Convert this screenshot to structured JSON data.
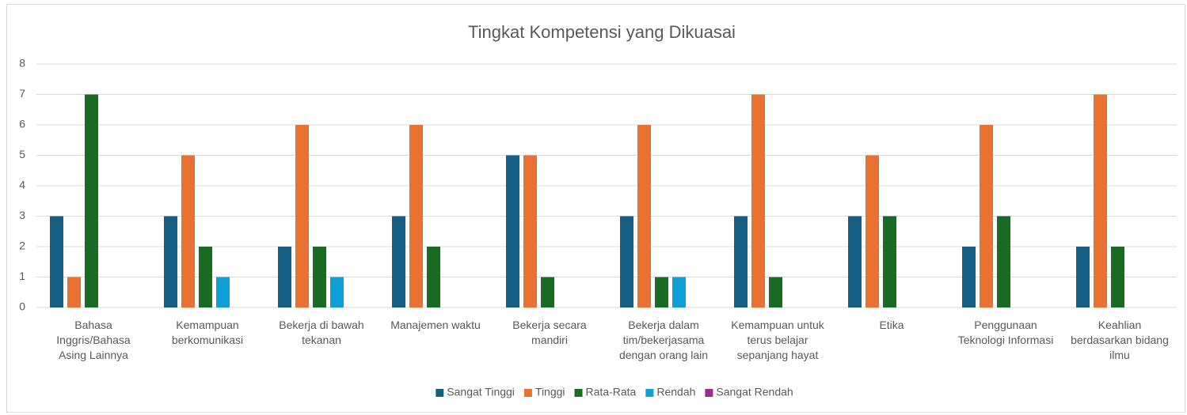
{
  "chart_data": {
    "type": "bar",
    "title": "Tingkat Kompetensi yang Dikuasai",
    "categories": [
      "Bahasa Inggris/Bahasa Asing Lainnya",
      "Kemampuan berkomunikasi",
      "Bekerja di bawah tekanan",
      "Manajemen waktu",
      "Bekerja secara mandiri",
      "Bekerja dalam tim/bekerjasama dengan orang lain",
      "Kemampuan untuk terus belajar sepanjang hayat",
      "Etika",
      "Penggunaan Teknologi Informasi",
      "Keahlian berdasarkan bidang ilmu"
    ],
    "series": [
      {
        "name": "Sangat Tinggi",
        "color": "#156082",
        "values": [
          3,
          3,
          2,
          3,
          5,
          3,
          3,
          3,
          2,
          2
        ]
      },
      {
        "name": "Tinggi",
        "color": "#e97132",
        "values": [
          1,
          5,
          6,
          6,
          5,
          6,
          7,
          5,
          6,
          7
        ]
      },
      {
        "name": "Rata-Rata",
        "color": "#196b24",
        "values": [
          7,
          2,
          2,
          2,
          1,
          1,
          1,
          3,
          3,
          2
        ]
      },
      {
        "name": "Rendah",
        "color": "#0f9ed5",
        "values": [
          0,
          1,
          1,
          0,
          0,
          1,
          0,
          0,
          0,
          0
        ]
      },
      {
        "name": "Sangat Rendah",
        "color": "#a02b93",
        "values": [
          0,
          0,
          0,
          0,
          0,
          0,
          0,
          0,
          0,
          0
        ]
      }
    ],
    "ylim": [
      0,
      8
    ],
    "yticks": [
      0,
      1,
      2,
      3,
      4,
      5,
      6,
      7,
      8
    ],
    "grid": true,
    "legend": "bottom"
  }
}
